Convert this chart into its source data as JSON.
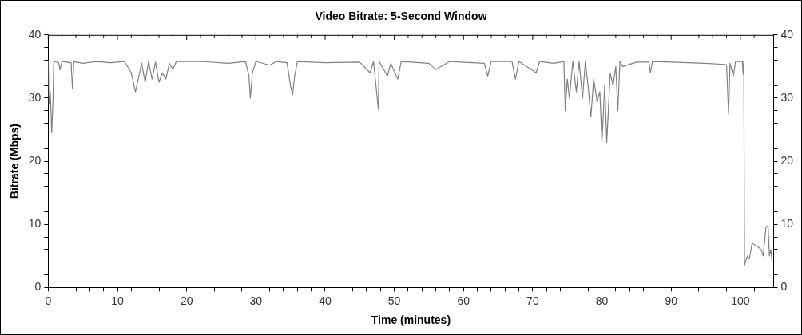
{
  "chart_data": {
    "type": "line",
    "title": "Video Bitrate: 5-Second Window",
    "xlabel": "Time (minutes)",
    "ylabel": "Bitrate (Mbps)",
    "x": [
      0,
      0.1,
      0.3,
      0.5,
      0.7,
      0.8,
      1.5,
      1.7,
      2,
      3.3,
      3.5,
      3.7,
      5,
      7,
      9,
      11,
      12,
      12.6,
      13,
      13.5,
      14,
      14.5,
      15,
      15.5,
      16,
      16.5,
      17,
      17.5,
      18,
      18.5,
      22,
      26,
      28.5,
      29,
      29.2,
      29.5,
      30,
      32,
      33,
      34.5,
      35,
      35.3,
      35.6,
      36,
      40,
      45,
      46.5,
      47,
      47.7,
      47.8,
      49,
      49.5,
      50.5,
      51,
      55,
      56,
      58,
      63,
      63.5,
      64,
      67,
      67.5,
      68,
      70.5,
      71,
      73,
      74.5,
      74.7,
      75,
      75.3,
      75.8,
      76.3,
      76.7,
      77.2,
      77.6,
      78,
      78.4,
      78.8,
      79.3,
      79.7,
      80,
      80.4,
      80.7,
      81.2,
      81.6,
      82,
      82.3,
      82.6,
      83,
      85,
      86.8,
      87,
      87.3,
      90,
      95,
      98,
      98.3,
      98.5,
      99,
      99.3,
      100.3,
      100.4,
      100.5,
      100.6,
      101,
      101.3,
      101.7,
      102.5,
      103,
      103.3,
      103.7,
      104,
      104.2,
      104.4,
      104.6
    ],
    "series": [
      {
        "color": "#808080",
        "values": [
          36,
          29,
          31,
          24.5,
          30,
          35.8,
          35.6,
          34.5,
          35.8,
          35.6,
          31.5,
          35.8,
          35.5,
          35.8,
          35.6,
          35.8,
          34,
          31,
          33,
          35.5,
          32.5,
          35.8,
          33,
          35.7,
          32.5,
          34,
          33,
          35.5,
          34.5,
          35.8,
          35.8,
          35.5,
          35.8,
          33.5,
          30,
          34,
          35.8,
          35.2,
          35.8,
          35.6,
          32,
          30.5,
          33.5,
          35.8,
          35.6,
          35.7,
          34,
          35.8,
          28.2,
          35.8,
          33.5,
          35.5,
          33,
          35.8,
          35.5,
          34.5,
          35.8,
          35.5,
          33.5,
          35.8,
          35.8,
          33,
          35.8,
          34,
          35.8,
          35.5,
          35.8,
          28,
          33,
          30,
          35.8,
          31,
          35.8,
          30,
          35.8,
          32,
          27,
          33,
          29.5,
          31,
          23,
          32,
          23,
          34,
          32,
          35,
          28,
          35.8,
          35,
          35.7,
          35.7,
          34,
          35.8,
          35.7,
          35.5,
          35.3,
          27.5,
          35.5,
          33.5,
          35.8,
          35.8,
          33.8,
          35.8,
          3.5,
          5,
          4.5,
          7,
          6.5,
          6,
          5,
          9.5,
          9.8,
          5,
          6,
          4
        ]
      }
    ],
    "xlim": [
      0,
      104.8
    ],
    "xticks": [
      0,
      {
        "value": 2,
        "label": null
      },
      {
        "value": 4,
        "label": null
      },
      {
        "value": 6,
        "label": null
      },
      {
        "value": 8,
        "label": null
      },
      10,
      {
        "value": 12,
        "label": null
      },
      {
        "value": 14,
        "label": null
      },
      {
        "value": 16,
        "label": null
      },
      {
        "value": 18,
        "label": null
      },
      20,
      {
        "value": 22,
        "label": null
      },
      {
        "value": 24,
        "label": null
      },
      {
        "value": 26,
        "label": null
      },
      {
        "value": 28,
        "label": null
      },
      30,
      {
        "value": 32,
        "label": null
      },
      {
        "value": 34,
        "label": null
      },
      {
        "value": 36,
        "label": null
      },
      {
        "value": 38,
        "label": null
      },
      40,
      {
        "value": 42,
        "label": null
      },
      {
        "value": 44,
        "label": null
      },
      {
        "value": 46,
        "label": null
      },
      {
        "value": 48,
        "label": null
      },
      50,
      {
        "value": 52,
        "label": null
      },
      {
        "value": 54,
        "label": null
      },
      {
        "value": 56,
        "label": null
      },
      {
        "value": 58,
        "label": null
      },
      60,
      {
        "value": 62,
        "label": null
      },
      {
        "value": 64,
        "label": null
      },
      {
        "value": 66,
        "label": null
      },
      {
        "value": 68,
        "label": null
      },
      70,
      {
        "value": 72,
        "label": null
      },
      {
        "value": 74,
        "label": null
      },
      {
        "value": 76,
        "label": null
      },
      {
        "value": 78,
        "label": null
      },
      80,
      {
        "value": 82,
        "label": null
      },
      {
        "value": 84,
        "label": null
      },
      {
        "value": 86,
        "label": null
      },
      {
        "value": 88,
        "label": null
      },
      90,
      {
        "value": 92,
        "label": null
      },
      {
        "value": 94,
        "label": null
      },
      {
        "value": 96,
        "label": null
      },
      {
        "value": 98,
        "label": null
      },
      100,
      {
        "value": 102,
        "label": null
      },
      {
        "value": 104,
        "label": null
      }
    ],
    "ylim": [
      0,
      40
    ],
    "yticks": [
      0,
      {
        "value": 2,
        "label": null
      },
      {
        "value": 4,
        "label": null
      },
      {
        "value": 6,
        "label": null
      },
      {
        "value": 8,
        "label": null
      },
      10,
      {
        "value": 12,
        "label": null
      },
      {
        "value": 14,
        "label": null
      },
      {
        "value": 16,
        "label": null
      },
      {
        "value": 18,
        "label": null
      },
      20,
      {
        "value": 22,
        "label": null
      },
      {
        "value": 24,
        "label": null
      },
      {
        "value": 26,
        "label": null
      },
      {
        "value": 28,
        "label": null
      },
      30,
      {
        "value": 32,
        "label": null
      },
      {
        "value": 34,
        "label": null
      },
      {
        "value": 36,
        "label": null
      },
      {
        "value": 38,
        "label": null
      },
      40
    ],
    "y2lim": [
      0,
      40
    ],
    "y2ticks": [
      0,
      {
        "value": 2,
        "label": null
      },
      {
        "value": 4,
        "label": null
      },
      {
        "value": 6,
        "label": null
      },
      {
        "value": 8,
        "label": null
      },
      10,
      {
        "value": 12,
        "label": null
      },
      {
        "value": 14,
        "label": null
      },
      {
        "value": 16,
        "label": null
      },
      {
        "value": 18,
        "label": null
      },
      20,
      {
        "value": 22,
        "label": null
      },
      {
        "value": 24,
        "label": null
      },
      {
        "value": 26,
        "label": null
      },
      {
        "value": 28,
        "label": null
      },
      30,
      {
        "value": 32,
        "label": null
      },
      {
        "value": 34,
        "label": null
      },
      {
        "value": 36,
        "label": null
      },
      {
        "value": 38,
        "label": null
      },
      40
    ],
    "grid": false,
    "legend": false,
    "marker": "none",
    "line_style": "solid"
  }
}
